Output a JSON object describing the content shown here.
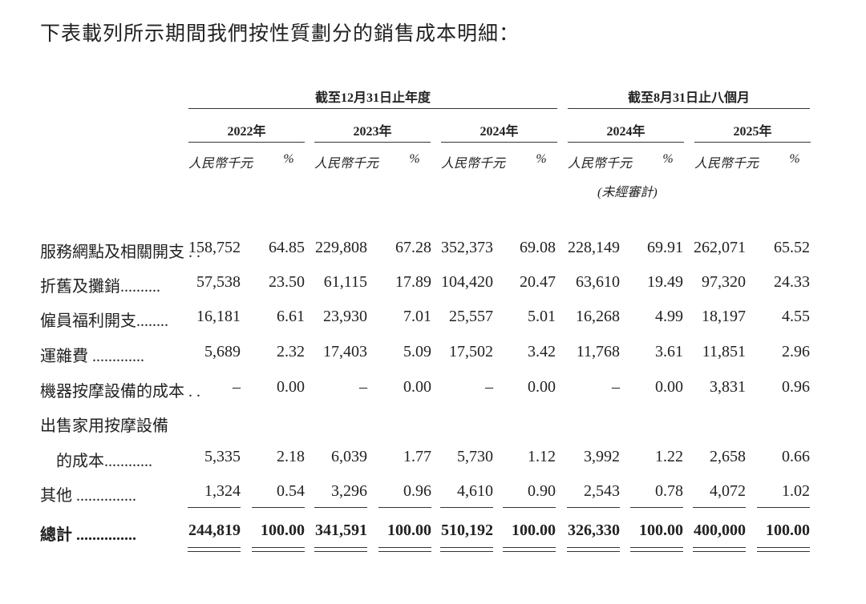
{
  "title": "下表載列所示期間我們按性質劃分的銷售成本明細：",
  "groups": [
    "截至12月31日止年度",
    "截至8月31日止八個月"
  ],
  "years": [
    "2022年",
    "2023年",
    "2024年",
    "2024年",
    "2025年"
  ],
  "unit_rmb": "人民幣千元",
  "unit_pct": "%",
  "unaudited": "(未經審計)",
  "rows": [
    {
      "label": "服務網點及相關開支 . .",
      "values": [
        "158,752",
        "64.85",
        "229,808",
        "67.28",
        "352,373",
        "69.08",
        "228,149",
        "69.91",
        "262,071",
        "65.52"
      ]
    },
    {
      "label": "折舊及攤銷..........",
      "values": [
        "57,538",
        "23.50",
        "61,115",
        "17.89",
        "104,420",
        "20.47",
        "63,610",
        "19.49",
        "97,320",
        "24.33"
      ]
    },
    {
      "label": "僱員福利開支........",
      "values": [
        "16,181",
        "6.61",
        "23,930",
        "7.01",
        "25,557",
        "5.01",
        "16,268",
        "4.99",
        "18,197",
        "4.55"
      ]
    },
    {
      "label": "運雜費 .............",
      "values": [
        "5,689",
        "2.32",
        "17,403",
        "5.09",
        "17,502",
        "3.42",
        "11,768",
        "3.61",
        "11,851",
        "2.96"
      ]
    },
    {
      "label": "機器按摩設備的成本 . .",
      "values": [
        "–",
        "0.00",
        "–",
        "0.00",
        "–",
        "0.00",
        "–",
        "0.00",
        "3,831",
        "0.96"
      ]
    },
    {
      "label": "出售家用按摩設備",
      "values": []
    },
    {
      "label": "　的成本............",
      "values": [
        "5,335",
        "2.18",
        "6,039",
        "1.77",
        "5,730",
        "1.12",
        "3,992",
        "1.22",
        "2,658",
        "0.66"
      ]
    },
    {
      "label": "其他 ...............",
      "values": [
        "1,324",
        "0.54",
        "3,296",
        "0.96",
        "4,610",
        "0.90",
        "2,543",
        "0.78",
        "4,072",
        "1.02"
      ]
    }
  ],
  "total": {
    "label": "總計 ...............",
    "values": [
      "244,819",
      "100.00",
      "341,591",
      "100.00",
      "510,192",
      "100.00",
      "326,330",
      "100.00",
      "400,000",
      "100.00"
    ]
  }
}
